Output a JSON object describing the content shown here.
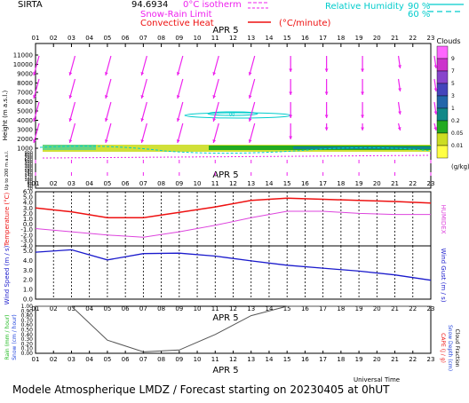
{
  "header": {
    "station": "SIRTA",
    "coords": "94.6934",
    "legend_isotherm": "0°C isotherm",
    "legend_snow_rain": "Snow-Rain Limit",
    "legend_convective": "Convective Heat",
    "legend_convective_unit": "(°C/minute)",
    "legend_rh": "Relative Humidity",
    "rh_90": "90 %",
    "rh_60": "60 %"
  },
  "hours": [
    "01",
    "02",
    "03",
    "04",
    "05",
    "06",
    "07",
    "08",
    "09",
    "10",
    "11",
    "12",
    "13",
    "14",
    "15",
    "16",
    "17",
    "18",
    "19",
    "20",
    "21",
    "22",
    "23"
  ],
  "footer": {
    "title": "Modele Atmospherique LMDZ / Forecast starting on 20230405 at 0hUT",
    "universal_time": "Universal Time"
  },
  "colors": {
    "temperature": "#ee1111",
    "humidex": "#dd44dd",
    "wind": "#1a1acc",
    "precip": "#555555",
    "wind_arrow": "#ee22ee",
    "rh": "#00cccc"
  },
  "chart_data": [
    {
      "type": "heatmap",
      "panel": "height",
      "date_label": "APR   5",
      "ylabel": "Height  (m a.s.l.)",
      "ylabel_low": "Up to 200 m a.s.l.",
      "y_ticks_upper": [
        "11000",
        "10000",
        "9000",
        "8000",
        "7000",
        "6000",
        "5000",
        "4000",
        "3000",
        "2000",
        "1000"
      ],
      "y_ticks_lower": [
        "900",
        "800",
        "700",
        "600",
        "500",
        "400",
        "300",
        "200",
        "180",
        "160",
        "140",
        "120",
        "100",
        "80",
        "60",
        "40",
        "20"
      ],
      "clouds": {
        "title": "Clouds",
        "unit": "(g/kg)",
        "levels": [
          "9",
          "7",
          "5",
          "3",
          "1",
          "0.2",
          "0.05",
          "0.01"
        ],
        "colors": [
          "#ff66ff",
          "#cc33cc",
          "#8844cc",
          "#4444bb",
          "#2266aa",
          "#118888",
          "#22aa22",
          "#ccdd22",
          "#ffff44"
        ]
      },
      "rh_label": "00",
      "wind_arrow_hours": [
        "01",
        "03",
        "05",
        "07",
        "09",
        "11",
        "13",
        "15",
        "17",
        "19",
        "21",
        "23"
      ]
    },
    {
      "type": "line",
      "panel": "temperature",
      "date_label": "APR   5",
      "ylabel": "Temperature (°C)",
      "ylabel_right": "HUMIDEX",
      "y_ticks": [
        "6.0",
        "5.0",
        "4.0",
        "3.0",
        "2.0",
        "1.0",
        "0.0",
        "-1.0",
        "-2.0",
        "-3.0",
        "-4.0"
      ],
      "ylim": [
        -4,
        6
      ],
      "x": [
        1,
        3,
        5,
        7,
        9,
        11,
        13,
        15,
        17,
        19,
        21,
        23
      ],
      "series": [
        {
          "name": "Temperature",
          "values": [
            3.0,
            2.3,
            1.2,
            1.2,
            2.2,
            3.2,
            4.4,
            4.8,
            4.6,
            4.4,
            4.2,
            3.9
          ]
        },
        {
          "name": "Humidex",
          "values": [
            -0.8,
            -1.4,
            -2.0,
            -2.4,
            -1.4,
            -0.2,
            1.2,
            2.4,
            2.4,
            2.0,
            1.8,
            1.8
          ]
        }
      ]
    },
    {
      "type": "line",
      "panel": "wind",
      "ylabel": "Wind Speed (m / s)",
      "ylabel_right": "Wind Gust (m / s)",
      "y_ticks": [
        "5.0",
        "4.0",
        "3.0",
        "2.0",
        "1.0",
        "0.0"
      ],
      "ylim": [
        0,
        5.5
      ],
      "x": [
        1,
        3,
        5,
        7,
        9,
        11,
        13,
        15,
        17,
        19,
        21,
        23
      ],
      "series": [
        {
          "name": "Wind Speed",
          "values": [
            4.85,
            5.1,
            4.05,
            4.7,
            4.75,
            4.45,
            3.95,
            3.5,
            3.2,
            2.9,
            2.5,
            1.95
          ]
        }
      ]
    },
    {
      "type": "line",
      "panel": "precipitation",
      "date_label": "APR   5",
      "ylabel_left": [
        "Rain (mm / hour)",
        "Snow (cm / hour)"
      ],
      "ylabel_right": [
        "CAPE (J / g)",
        "Snow Depth (cm)",
        "Cloud Fraction"
      ],
      "y_ticks": [
        "1.00",
        "0.90",
        "0.80",
        "0.70",
        "0.60",
        "0.50",
        "0.40",
        "0.30",
        "0.20",
        "0.10",
        "0.00"
      ],
      "ylim": [
        0,
        1
      ],
      "x": [
        1,
        3,
        5,
        7,
        9,
        11,
        13,
        15,
        17,
        19,
        21,
        23
      ],
      "series": [
        {
          "name": "Cloud Fraction",
          "values": [
            1.0,
            1.0,
            0.28,
            0.03,
            0.07,
            0.4,
            0.8,
            1.0,
            1.0,
            1.0,
            1.0,
            1.0
          ]
        }
      ]
    }
  ]
}
